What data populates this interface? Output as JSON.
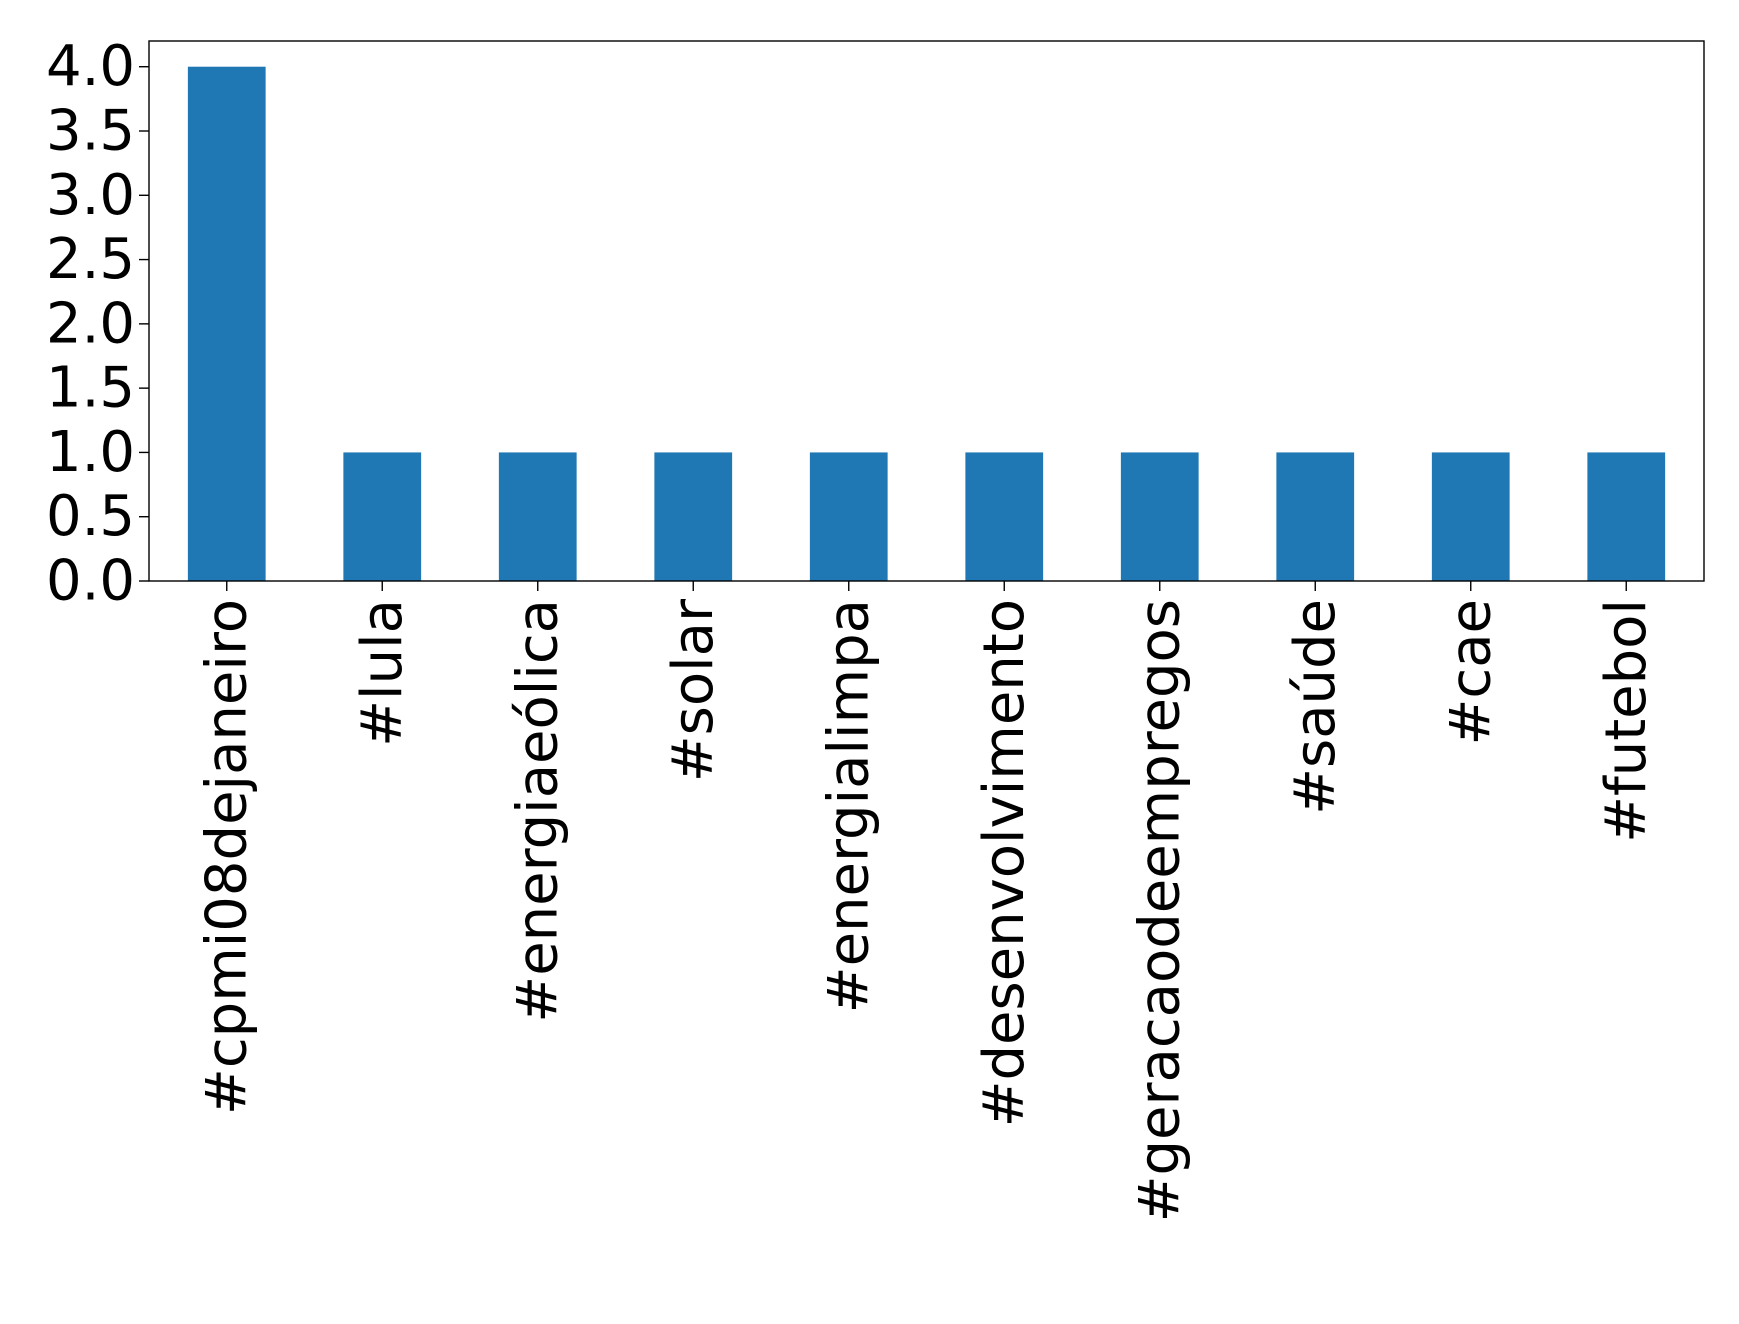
{
  "chart_data": {
    "type": "bar",
    "title": "",
    "xlabel": "",
    "ylabel": "",
    "categories": [
      "#cpmi08dejaneiro",
      "#lula",
      "#energiaeólica",
      "#solar",
      "#energialimpa",
      "#desenvolvimento",
      "#geracaodeempregos",
      "#saúde",
      "#cae",
      "#futebol"
    ],
    "values": [
      4,
      1,
      1,
      1,
      1,
      1,
      1,
      1,
      1,
      1
    ],
    "ylim": [
      0,
      4.2
    ],
    "yticks": [
      "0.0",
      "0.5",
      "1.0",
      "1.5",
      "2.0",
      "2.5",
      "3.0",
      "3.5",
      "4.0"
    ],
    "bar_color": "#1f77b4",
    "grid": false,
    "legend": "none"
  }
}
